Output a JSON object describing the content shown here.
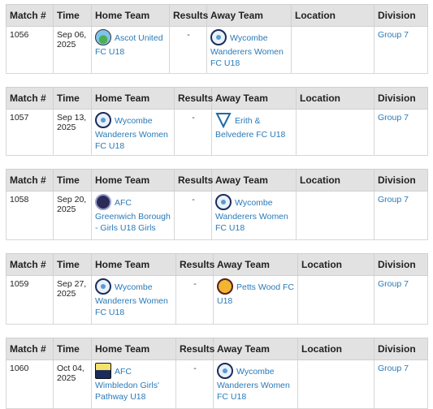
{
  "headers": {
    "match": "Match #",
    "time": "Time",
    "home": "Home Team",
    "results": "Results",
    "away": "Away Team",
    "location": "Location",
    "division": "Division"
  },
  "fixtures": [
    {
      "match": "1056",
      "time": "Sep 06, 2025",
      "home": "Ascot United FC U18",
      "home_icon": "ascot-united-crest-icon",
      "result": "-",
      "away": "Wycombe Wanderers Women FC U18",
      "away_icon": "wycombe-crest-icon",
      "location": "",
      "division": "Group 7"
    },
    {
      "match": "1057",
      "time": "Sep 13, 2025",
      "home": "Wycombe Wanderers Women FC U18",
      "home_icon": "wycombe-crest-icon",
      "result": "-",
      "away": "Erith & Belvedere FC U18",
      "away_icon": "erith-belvedere-crest-icon",
      "location": "",
      "division": "Group 7"
    },
    {
      "match": "1058",
      "time": "Sep 20, 2025",
      "home": "AFC Greenwich Borough - Girls U18 Girls",
      "home_icon": "afc-greenwich-crest-icon",
      "result": "-",
      "away": "Wycombe Wanderers Women FC U18",
      "away_icon": "wycombe-crest-icon",
      "location": "",
      "division": "Group 7"
    },
    {
      "match": "1059",
      "time": "Sep 27, 2025",
      "home": "Wycombe Wanderers Women FC U18",
      "home_icon": "wycombe-crest-icon",
      "result": "-",
      "away": "Petts Wood FC U18",
      "away_icon": "petts-wood-crest-icon",
      "location": "",
      "division": "Group 7"
    },
    {
      "match": "1060",
      "time": "Oct 04, 2025",
      "home": "AFC Wimbledon Girls' Pathway U18",
      "home_icon": "afc-wimbledon-crest-icon",
      "result": "-",
      "away": "Wycombe Wanderers Women FC U18",
      "away_icon": "wycombe-crest-icon",
      "location": "",
      "division": "Group 7"
    }
  ]
}
